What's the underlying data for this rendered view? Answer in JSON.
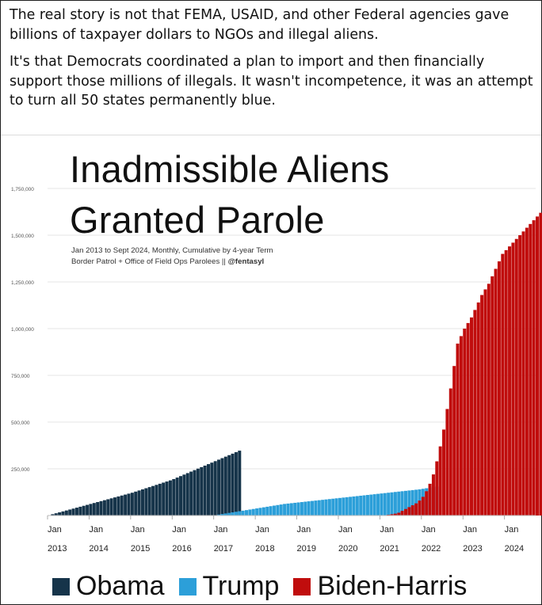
{
  "post": {
    "paragraph1": "The real story is not that FEMA, USAID, and other Federal agencies gave billions of taxpayer dollars to NGOs and illegal aliens.",
    "paragraph2": "It's that Democrats coordinated a plan to import and then financially support those millions of illegals. It wasn't incompetence, it was an attempt to turn all 50 states permanently blue."
  },
  "chart_data": {
    "type": "bar",
    "title_line1": "Inadmissible Aliens",
    "title_line2": "Granted Parole",
    "subtitle_line1": "Jan 2013 to Sept 2024, Monthly, Cumulative by 4-year Term",
    "subtitle_line2_text": "Border Patrol + Office of Field Ops Parolees || ",
    "subtitle_handle": "@fentasyl",
    "ylim": [
      0,
      1750000
    ],
    "y_ticks": [
      "1,750,000",
      "1,500,000",
      "1,250,000",
      "1,000,000",
      "750,000",
      "500,000",
      "250,000"
    ],
    "x_ticks": [
      {
        "month": "Jan",
        "year": "2013"
      },
      {
        "month": "Jan",
        "year": "2014"
      },
      {
        "month": "Jan",
        "year": "2015"
      },
      {
        "month": "Jan",
        "year": "2016"
      },
      {
        "month": "Jan",
        "year": "2017"
      },
      {
        "month": "Jan",
        "year": "2018"
      },
      {
        "month": "Jan",
        "year": "2019"
      },
      {
        "month": "Jan",
        "year": "2020"
      },
      {
        "month": "Jan",
        "year": "2021"
      },
      {
        "month": "Jan",
        "year": "2022"
      },
      {
        "month": "Jan",
        "year": "2023"
      },
      {
        "month": "Jan",
        "year": "2024"
      }
    ],
    "series": [
      {
        "name": "Obama",
        "color": "#16344a",
        "start": "2013-01",
        "values": [
          2000,
          7000,
          12000,
          17000,
          22000,
          27000,
          32000,
          37000,
          42000,
          47000,
          52000,
          57000,
          62000,
          67000,
          72000,
          77000,
          82000,
          87000,
          92000,
          97000,
          102000,
          107000,
          112000,
          117000,
          122000,
          128000,
          134000,
          140000,
          146000,
          152000,
          158000,
          164000,
          170000,
          176000,
          182000,
          188000,
          195000,
          203000,
          211000,
          219000,
          227000,
          235000,
          243000,
          251000,
          259000,
          267000,
          275000,
          283000,
          291000,
          299000,
          307000,
          315000,
          323000,
          331000,
          339000,
          347000
        ]
      },
      {
        "name": "Trump",
        "color": "#2c9fd9",
        "start": "2017-01",
        "values": [
          2000,
          5000,
          8000,
          11000,
          14000,
          17000,
          20000,
          23000,
          26000,
          29000,
          32000,
          35000,
          38000,
          41000,
          44000,
          47000,
          50000,
          53000,
          56000,
          59000,
          62000,
          64000,
          66000,
          68000,
          70000,
          72000,
          74000,
          76000,
          78000,
          80000,
          82000,
          84000,
          86000,
          88000,
          90000,
          92000,
          94000,
          96000,
          98000,
          100000,
          102000,
          104000,
          106000,
          108000,
          110000,
          112000,
          114000,
          116000,
          118000,
          120000,
          122000,
          124000,
          126000,
          128000,
          130000,
          132000,
          134000,
          136000,
          138000,
          140000,
          143000,
          146000,
          149000,
          152000,
          155000
        ]
      },
      {
        "name": "Biden-Harris",
        "color": "#c00d0d",
        "start": "2021-01",
        "values": [
          1000,
          2000,
          4000,
          7000,
          10000,
          15000,
          25000,
          35000,
          45000,
          55000,
          65000,
          80000,
          100000,
          130000,
          170000,
          220000,
          290000,
          370000,
          460000,
          570000,
          680000,
          800000,
          920000,
          960000,
          1000000,
          1030000,
          1060000,
          1100000,
          1140000,
          1180000,
          1210000,
          1240000,
          1280000,
          1320000,
          1360000,
          1400000,
          1420000,
          1440000,
          1460000,
          1480000,
          1500000,
          1520000,
          1540000,
          1560000,
          1580000,
          1600000,
          1620000,
          1640000,
          1660000,
          1675000,
          1685000
        ]
      }
    ],
    "legend": [
      {
        "label": "Obama",
        "color": "#16344a"
      },
      {
        "label": "Trump",
        "color": "#2c9fd9"
      },
      {
        "label": "Biden-Harris",
        "color": "#c00d0d"
      }
    ]
  }
}
